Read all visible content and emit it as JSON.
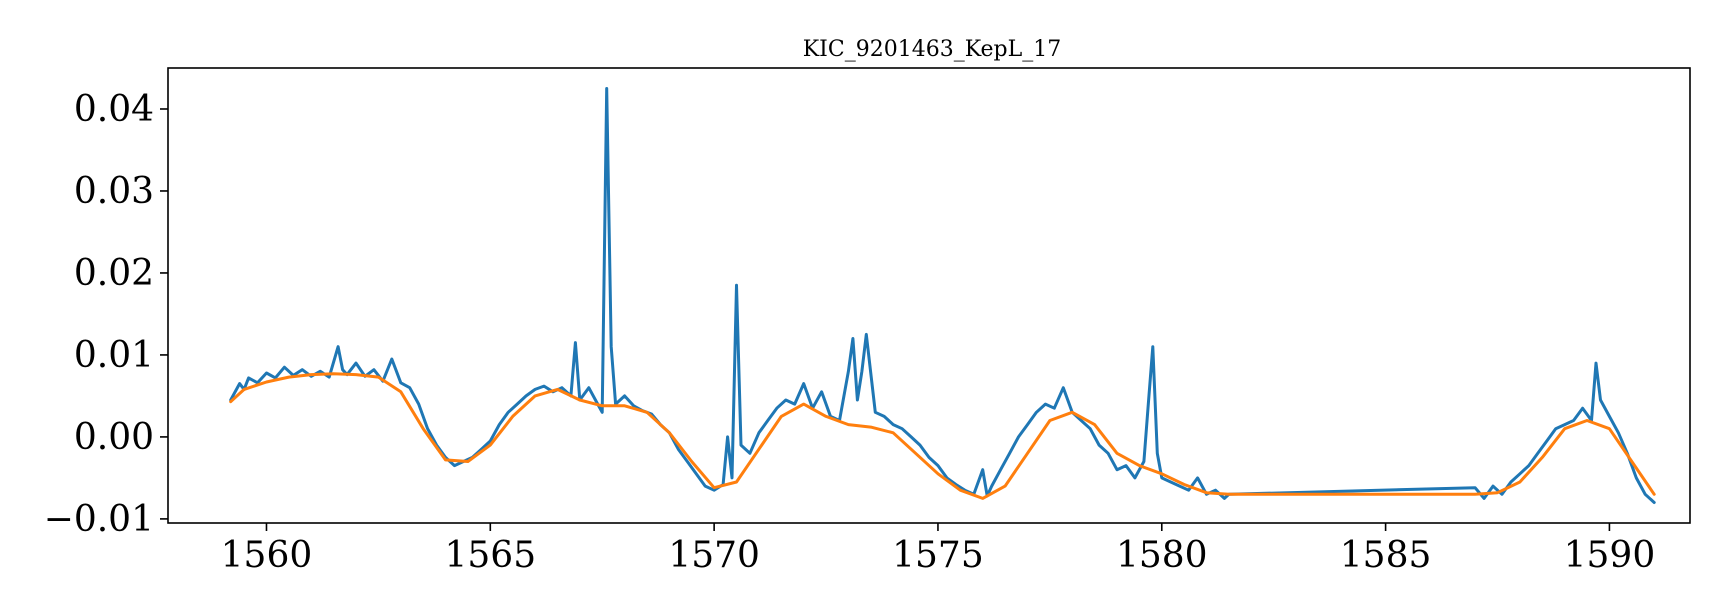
{
  "chart_data": {
    "type": "line",
    "title": "KIC_9201463_KepL_17",
    "xlabel": "",
    "ylabel": "",
    "xlim": [
      1557.8,
      1591.8
    ],
    "ylim": [
      -0.0105,
      0.045
    ],
    "xticks": [
      1560,
      1565,
      1570,
      1575,
      1580,
      1585,
      1590
    ],
    "xtick_labels": [
      "1560",
      "1565",
      "1570",
      "1575",
      "1580",
      "1585",
      "1590"
    ],
    "yticks": [
      -0.01,
      0.0,
      0.01,
      0.02,
      0.03,
      0.04
    ],
    "ytick_labels": [
      "−0.01",
      "0.00",
      "0.01",
      "0.02",
      "0.03",
      "0.04"
    ],
    "grid": false,
    "legend": "none",
    "series": [
      {
        "color": "#1f77b4",
        "x": [
          1559.2,
          1559.4,
          1559.5,
          1559.6,
          1559.8,
          1560.0,
          1560.2,
          1560.4,
          1560.6,
          1560.8,
          1561.0,
          1561.2,
          1561.4,
          1561.6,
          1561.7,
          1561.8,
          1562.0,
          1562.2,
          1562.4,
          1562.6,
          1562.8,
          1563.0,
          1563.2,
          1563.4,
          1563.6,
          1563.8,
          1564.0,
          1564.2,
          1564.4,
          1564.6,
          1564.8,
          1565.0,
          1565.2,
          1565.4,
          1565.6,
          1565.8,
          1566.0,
          1566.2,
          1566.4,
          1566.6,
          1566.8,
          1566.9,
          1567.0,
          1567.2,
          1567.4,
          1567.5,
          1567.6,
          1567.7,
          1567.8,
          1568.0,
          1568.2,
          1568.4,
          1568.6,
          1568.8,
          1569.0,
          1569.2,
          1569.4,
          1569.6,
          1569.8,
          1570.0,
          1570.2,
          1570.3,
          1570.4,
          1570.5,
          1570.6,
          1570.8,
          1571.0,
          1571.2,
          1571.4,
          1571.6,
          1571.8,
          1572.0,
          1572.2,
          1572.4,
          1572.6,
          1572.8,
          1573.0,
          1573.1,
          1573.2,
          1573.3,
          1573.4,
          1573.6,
          1573.8,
          1574.0,
          1574.2,
          1574.4,
          1574.6,
          1574.8,
          1575.0,
          1575.2,
          1575.4,
          1575.6,
          1575.8,
          1576.0,
          1576.1,
          1576.2,
          1576.4,
          1576.6,
          1576.8,
          1577.0,
          1577.2,
          1577.4,
          1577.6,
          1577.8,
          1578.0,
          1578.2,
          1578.4,
          1578.6,
          1578.8,
          1579.0,
          1579.2,
          1579.4,
          1579.6,
          1579.7,
          1579.8,
          1579.9,
          1580.0,
          1580.2,
          1580.4,
          1580.6,
          1580.8,
          1581.0,
          1581.2,
          1581.4,
          1581.5,
          1587.0,
          1587.2,
          1587.4,
          1587.6,
          1587.8,
          1588.0,
          1588.2,
          1588.4,
          1588.6,
          1588.8,
          1589.0,
          1589.2,
          1589.4,
          1589.6,
          1589.7,
          1589.8,
          1590.0,
          1590.2,
          1590.4,
          1590.6,
          1590.8,
          1591.0
        ],
        "values": [
          0.0045,
          0.0065,
          0.0058,
          0.0072,
          0.0066,
          0.0078,
          0.0072,
          0.0085,
          0.0075,
          0.0082,
          0.0074,
          0.008,
          0.0073,
          0.011,
          0.0082,
          0.0076,
          0.009,
          0.0074,
          0.0082,
          0.0068,
          0.0095,
          0.0066,
          0.006,
          0.004,
          0.001,
          -0.001,
          -0.0025,
          -0.0035,
          -0.003,
          -0.0025,
          -0.0015,
          -0.0005,
          0.0015,
          0.003,
          0.004,
          0.005,
          0.0058,
          0.0062,
          0.0055,
          0.006,
          0.005,
          0.0115,
          0.0045,
          0.006,
          0.004,
          0.003,
          0.0425,
          0.011,
          0.004,
          0.005,
          0.0038,
          0.0032,
          0.0028,
          0.0015,
          0.0005,
          -0.0015,
          -0.003,
          -0.0045,
          -0.006,
          -0.0065,
          -0.0058,
          0.0,
          -0.005,
          0.0185,
          -0.001,
          -0.002,
          0.0005,
          0.002,
          0.0035,
          0.0045,
          0.004,
          0.0065,
          0.0035,
          0.0055,
          0.0025,
          0.002,
          0.008,
          0.012,
          0.0045,
          0.008,
          0.0125,
          0.003,
          0.0025,
          0.0015,
          0.001,
          0.0,
          -0.001,
          -0.0025,
          -0.0035,
          -0.005,
          -0.0058,
          -0.0065,
          -0.007,
          -0.004,
          -0.0072,
          -0.006,
          -0.004,
          -0.002,
          0.0,
          0.0015,
          0.003,
          0.004,
          0.0035,
          0.006,
          0.003,
          0.002,
          0.001,
          -0.001,
          -0.002,
          -0.004,
          -0.0035,
          -0.005,
          -0.003,
          0.004,
          0.011,
          -0.002,
          -0.005,
          -0.0055,
          -0.006,
          -0.0065,
          -0.005,
          -0.007,
          -0.0065,
          -0.0075,
          -0.007,
          -0.0062,
          -0.0075,
          -0.006,
          -0.007,
          -0.0055,
          -0.0045,
          -0.0035,
          -0.002,
          -0.0005,
          0.001,
          0.0015,
          0.002,
          0.0035,
          0.002,
          0.009,
          0.0045,
          0.0025,
          0.0005,
          -0.002,
          -0.005,
          -0.007,
          -0.008
        ]
      },
      {
        "color": "#ff7f0e",
        "x": [
          1559.2,
          1559.5,
          1560.0,
          1560.5,
          1561.0,
          1561.5,
          1562.0,
          1562.5,
          1563.0,
          1563.5,
          1564.0,
          1564.5,
          1565.0,
          1565.5,
          1566.0,
          1566.5,
          1567.0,
          1567.5,
          1568.0,
          1568.5,
          1569.0,
          1569.5,
          1570.0,
          1570.5,
          1571.0,
          1571.5,
          1572.0,
          1572.5,
          1573.0,
          1573.5,
          1574.0,
          1574.5,
          1575.0,
          1575.5,
          1576.0,
          1576.5,
          1577.0,
          1577.5,
          1578.0,
          1578.5,
          1579.0,
          1579.5,
          1580.0,
          1580.5,
          1581.0,
          1581.5,
          1587.0,
          1587.5,
          1588.0,
          1588.5,
          1589.0,
          1589.5,
          1590.0,
          1590.5,
          1591.0
        ],
        "values": [
          0.0043,
          0.0058,
          0.0067,
          0.0073,
          0.0076,
          0.0077,
          0.0076,
          0.0073,
          0.0055,
          0.001,
          -0.0028,
          -0.003,
          -0.001,
          0.0025,
          0.005,
          0.0058,
          0.0045,
          0.0038,
          0.0038,
          0.003,
          0.0005,
          -0.003,
          -0.0062,
          -0.0055,
          -0.0015,
          0.0025,
          0.004,
          0.0025,
          0.0015,
          0.0012,
          0.0005,
          -0.002,
          -0.0045,
          -0.0065,
          -0.0075,
          -0.006,
          -0.002,
          0.002,
          0.003,
          0.0015,
          -0.002,
          -0.0035,
          -0.0045,
          -0.0058,
          -0.0068,
          -0.007,
          -0.007,
          -0.0068,
          -0.0055,
          -0.0025,
          0.001,
          0.002,
          0.001,
          -0.003,
          -0.007
        ]
      }
    ]
  }
}
